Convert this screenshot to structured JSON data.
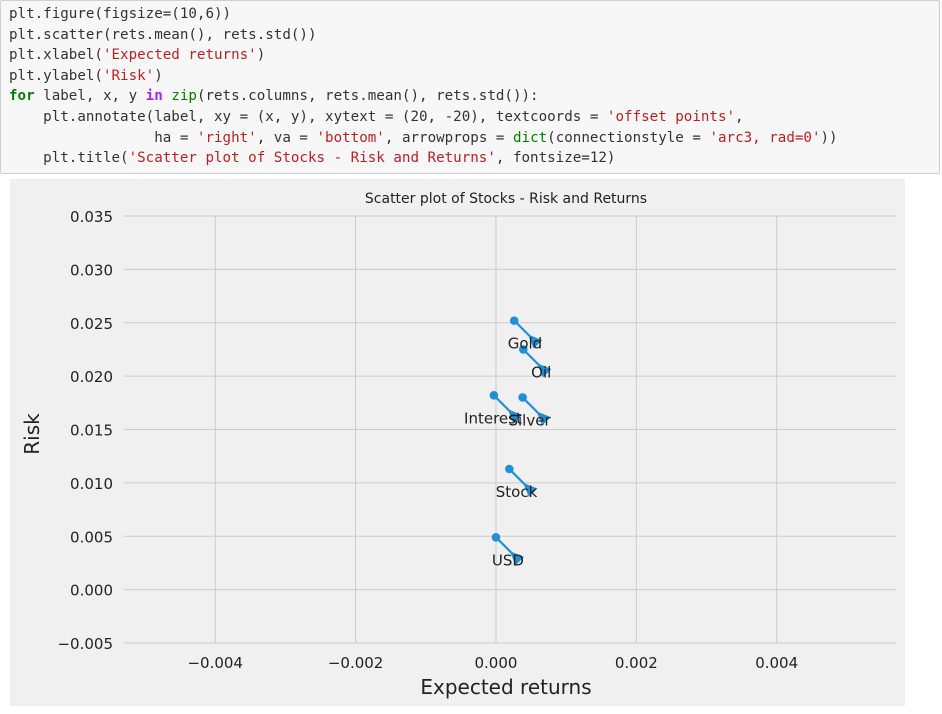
{
  "code_cell": {
    "lines": [
      [
        {
          "t": "plt.figure(figsize=(10,6))",
          "c": "p"
        }
      ],
      [
        {
          "t": "plt.scatter(rets.mean(), rets.std())",
          "c": "p"
        }
      ],
      [
        {
          "t": "plt.xlabel(",
          "c": "p"
        },
        {
          "t": "'Expected returns'",
          "c": "s"
        },
        {
          "t": ")",
          "c": "p"
        }
      ],
      [
        {
          "t": "plt.ylabel(",
          "c": "p"
        },
        {
          "t": "'Risk'",
          "c": "s"
        },
        {
          "t": ")",
          "c": "p"
        }
      ],
      [
        {
          "t": "for",
          "c": "k"
        },
        {
          "t": " label, x, y ",
          "c": "p"
        },
        {
          "t": "in",
          "c": "in"
        },
        {
          "t": " ",
          "c": "p"
        },
        {
          "t": "zip",
          "c": "b"
        },
        {
          "t": "(rets.columns, rets.mean(), rets.std()):",
          "c": "p"
        }
      ],
      [
        {
          "t": "    plt.annotate(label, xy = (x, y), xytext = (20, -20), textcoords = ",
          "c": "p"
        },
        {
          "t": "'offset points'",
          "c": "s"
        },
        {
          "t": ",",
          "c": "p"
        }
      ],
      [
        {
          "t": "                 ha = ",
          "c": "p"
        },
        {
          "t": "'right'",
          "c": "s"
        },
        {
          "t": ", va = ",
          "c": "p"
        },
        {
          "t": "'bottom'",
          "c": "s"
        },
        {
          "t": ", arrowprops = ",
          "c": "p"
        },
        {
          "t": "dict",
          "c": "b"
        },
        {
          "t": "(connectionstyle = ",
          "c": "p"
        },
        {
          "t": "'arc3, rad=0'",
          "c": "s"
        },
        {
          "t": "))",
          "c": "p"
        }
      ],
      [
        {
          "t": "    plt.title(",
          "c": "p"
        },
        {
          "t": "'Scatter plot of Stocks - Risk and Returns'",
          "c": "s"
        },
        {
          "t": ", fontsize=12)",
          "c": "p"
        }
      ]
    ]
  },
  "chart_data": {
    "type": "scatter",
    "title": "Scatter plot of Stocks - Risk and Returns",
    "xlabel": "Expected returns",
    "ylabel": "Risk",
    "xlim": [
      -0.0053,
      0.0057
    ],
    "ylim": [
      -0.005,
      0.035
    ],
    "xticks": [
      -0.004,
      -0.002,
      0.0,
      0.002,
      0.004
    ],
    "xtick_labels": [
      "−0.004",
      "−0.002",
      "0.000",
      "0.002",
      "0.004"
    ],
    "yticks": [
      -0.005,
      0.0,
      0.005,
      0.01,
      0.015,
      0.02,
      0.025,
      0.03,
      0.035
    ],
    "ytick_labels": [
      "−0.005",
      "0.000",
      "0.005",
      "0.010",
      "0.015",
      "0.020",
      "0.025",
      "0.030",
      "0.035"
    ],
    "grid": true,
    "point_color": "#1f8fd6",
    "background": "#f0f0f0",
    "points": [
      {
        "label": "Gold",
        "x": 0.00026,
        "y": 0.0252
      },
      {
        "label": "Oil",
        "x": 0.00039,
        "y": 0.0225
      },
      {
        "label": "Interest",
        "x": -3e-05,
        "y": 0.0182
      },
      {
        "label": "Silver",
        "x": 0.00038,
        "y": 0.018
      },
      {
        "label": "Stock",
        "x": 0.00019,
        "y": 0.0113
      },
      {
        "label": "USD",
        "x": 0.0,
        "y": 0.0049
      }
    ]
  }
}
